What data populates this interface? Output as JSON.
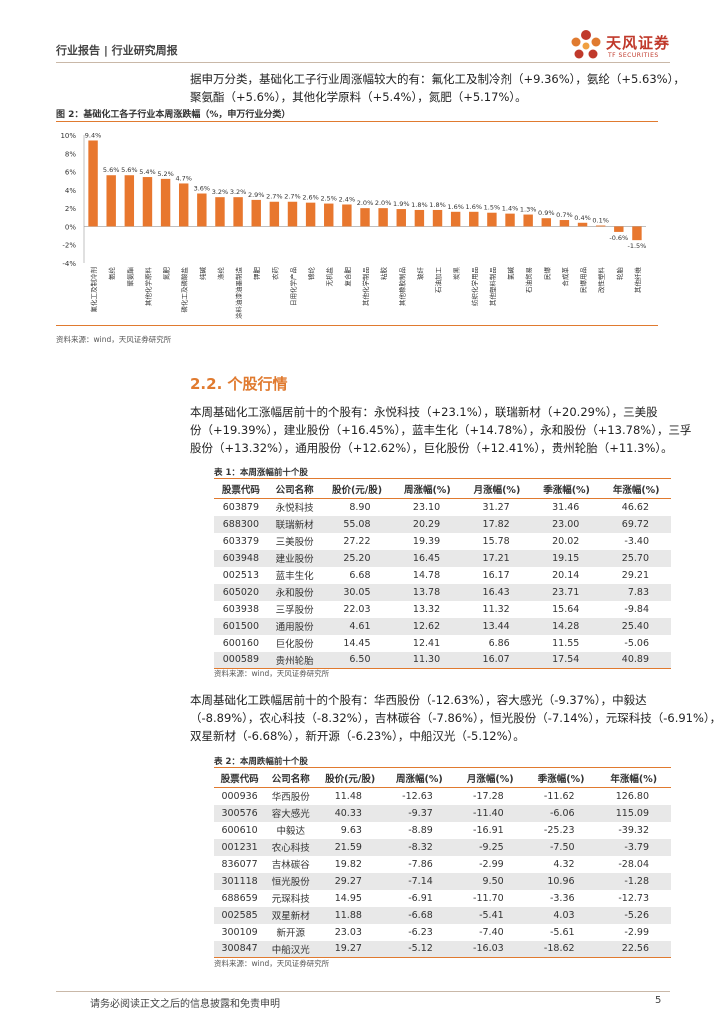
{
  "header": {
    "title": "行业报告 | 行业研究周报",
    "brand": "天风证券",
    "brand_en": "TF SECURITIES"
  },
  "intro": {
    "line1": "据申万分类，基础化工子行业周涨幅较大的有：氟化工及制冷剂（+9.36%），氨纶（+5.63%），",
    "line2": "聚氨酯（+5.6%），其他化学原料（+5.4%），氮肥（+5.17%）。"
  },
  "figure": {
    "title": "图 2：基础化工各子行业本周涨跌幅（%，申万行业分类）",
    "source": "资料来源：wind，天风证券研究所"
  },
  "chart_data": {
    "type": "bar",
    "title": "",
    "categories": [
      "氟化工及制冷剂",
      "氨纶",
      "聚氨酯",
      "其他化学原料",
      "氮肥",
      "磷化工及磷酸盐",
      "纯碱",
      "涤纶",
      "涂料油漆油墨制造",
      "钾肥",
      "农药",
      "日用化学产品",
      "锦纶",
      "无机盐",
      "复合肥",
      "其他化学制品",
      "粘胶",
      "其他橡胶制品",
      "玻纤",
      "石油加工",
      "炭黑",
      "纺织化学用品",
      "其他塑料制品",
      "氯碱",
      "石油贸易",
      "民爆",
      "合成革",
      "民爆用品",
      "改性塑料",
      "轮胎",
      "其他纤维"
    ],
    "values": [
      9.4,
      5.6,
      5.6,
      5.4,
      5.2,
      4.7,
      3.6,
      3.2,
      3.2,
      2.9,
      2.7,
      2.7,
      2.6,
      2.5,
      2.4,
      2.0,
      2.0,
      1.9,
      1.8,
      1.8,
      1.6,
      1.6,
      1.5,
      1.4,
      1.3,
      0.9,
      0.7,
      0.4,
      0.1,
      -0.6,
      -1.5
    ],
    "value_labels": [
      "9.4%",
      "5.6%",
      "5.6%",
      "5.4%",
      "5.2%",
      "4.7%",
      "3.6%",
      "3.2%",
      "3.2%",
      "2.9%",
      "2.7%",
      "2.7%",
      "2.6%",
      "2.5%",
      "2.4%",
      "2.0%",
      "2.0%",
      "1.9%",
      "1.8%",
      "1.8%",
      "1.6%",
      "1.6%",
      "1.5%",
      "1.4%",
      "1.3%",
      "0.9%",
      "0.7%",
      "0.4%",
      "0.1%",
      "-0.6%",
      "-1.5%"
    ],
    "yticks": [
      "10%",
      "8%",
      "6%",
      "4%",
      "2%",
      "0%",
      "-2%",
      "-4%"
    ],
    "ylim": [
      -4,
      10
    ],
    "color": "#e8772e",
    "grid": false,
    "legend": "none"
  },
  "section": {
    "title": "2.2. 个股行情"
  },
  "gainers_text": {
    "line1": "本周基础化工涨幅居前十的个股有：永悦科技（+23.1%），联瑞新材（+20.29%），三美股",
    "line2": "份（+19.39%），建业股份（+16.45%），蓝丰生化（+14.78%），永和股份（+13.78%），三孚",
    "line3": "股份（+13.32%），通用股份（+12.62%），巨化股份（+12.41%），贵州轮胎（+11.3%）。"
  },
  "table1": {
    "title": "表 1：本周涨幅前十个股",
    "source": "资料来源：wind，天风证券研究所",
    "headers": [
      "股票代码",
      "公司名称",
      "股价(元/股)",
      "周涨幅(%)",
      "月涨幅(%)",
      "季涨幅(%)",
      "年涨幅(%)"
    ],
    "rows": [
      [
        "603879",
        "永悦科技",
        "8.90",
        "23.10",
        "31.27",
        "31.46",
        "46.62"
      ],
      [
        "688300",
        "联瑞新材",
        "55.08",
        "20.29",
        "17.82",
        "23.00",
        "69.72"
      ],
      [
        "603379",
        "三美股份",
        "27.22",
        "19.39",
        "15.78",
        "20.02",
        "-3.40"
      ],
      [
        "603948",
        "建业股份",
        "25.20",
        "16.45",
        "17.21",
        "19.15",
        "25.70"
      ],
      [
        "002513",
        "蓝丰生化",
        "6.68",
        "14.78",
        "16.17",
        "20.14",
        "29.21"
      ],
      [
        "605020",
        "永和股份",
        "30.05",
        "13.78",
        "16.43",
        "23.71",
        "7.83"
      ],
      [
        "603938",
        "三孚股份",
        "22.03",
        "13.32",
        "11.32",
        "15.64",
        "-9.84"
      ],
      [
        "601500",
        "通用股份",
        "4.61",
        "12.62",
        "13.44",
        "14.28",
        "25.40"
      ],
      [
        "600160",
        "巨化股份",
        "14.45",
        "12.41",
        "6.86",
        "11.55",
        "-5.06"
      ],
      [
        "000589",
        "贵州轮胎",
        "6.50",
        "11.30",
        "16.07",
        "17.54",
        "40.89"
      ]
    ]
  },
  "losers_text": {
    "line1": "本周基础化工跌幅居前十的个股有：华西股份（-12.63%），容大感光（-9.37%），中毅达",
    "line2": "（-8.89%），农心科技（-8.32%），吉林碳谷（-7.86%），恒光股份（-7.14%），元琛科技（-6.91%），",
    "line3": "双星新材（-6.68%），新开源（-6.23%），中船汉光（-5.12%）。"
  },
  "table2": {
    "title": "表 2：本周跌幅前十个股",
    "source": "资料来源：wind，天风证券研究所",
    "headers": [
      "股票代码",
      "公司名称",
      "股价(元/股)",
      "周涨幅(%)",
      "月涨幅(%)",
      "季涨幅(%)",
      "年涨幅(%)"
    ],
    "rows": [
      [
        "000936",
        "华西股份",
        "11.48",
        "-12.63",
        "-17.28",
        "-11.62",
        "126.80"
      ],
      [
        "300576",
        "容大感光",
        "40.33",
        "-9.37",
        "-11.40",
        "-6.06",
        "115.09"
      ],
      [
        "600610",
        "中毅达",
        "9.63",
        "-8.89",
        "-16.91",
        "-25.23",
        "-39.32"
      ],
      [
        "001231",
        "农心科技",
        "21.59",
        "-8.32",
        "-9.25",
        "-7.50",
        "-3.79"
      ],
      [
        "836077",
        "吉林碳谷",
        "19.82",
        "-7.86",
        "-2.99",
        "4.32",
        "-28.04"
      ],
      [
        "301118",
        "恒光股份",
        "29.27",
        "-7.14",
        "9.50",
        "10.96",
        "-1.28"
      ],
      [
        "688659",
        "元琛科技",
        "14.95",
        "-6.91",
        "-11.70",
        "-3.36",
        "-12.73"
      ],
      [
        "002585",
        "双星新材",
        "11.88",
        "-6.68",
        "-5.41",
        "4.03",
        "-5.26"
      ],
      [
        "300109",
        "新开源",
        "23.03",
        "-6.23",
        "-7.40",
        "-5.61",
        "-2.99"
      ],
      [
        "300847",
        "中船汉光",
        "19.27",
        "-5.12",
        "-16.03",
        "-18.62",
        "22.56"
      ]
    ]
  },
  "footer": {
    "disclaimer": "请务必阅读正文之后的信息披露和免责申明",
    "page": "5"
  }
}
